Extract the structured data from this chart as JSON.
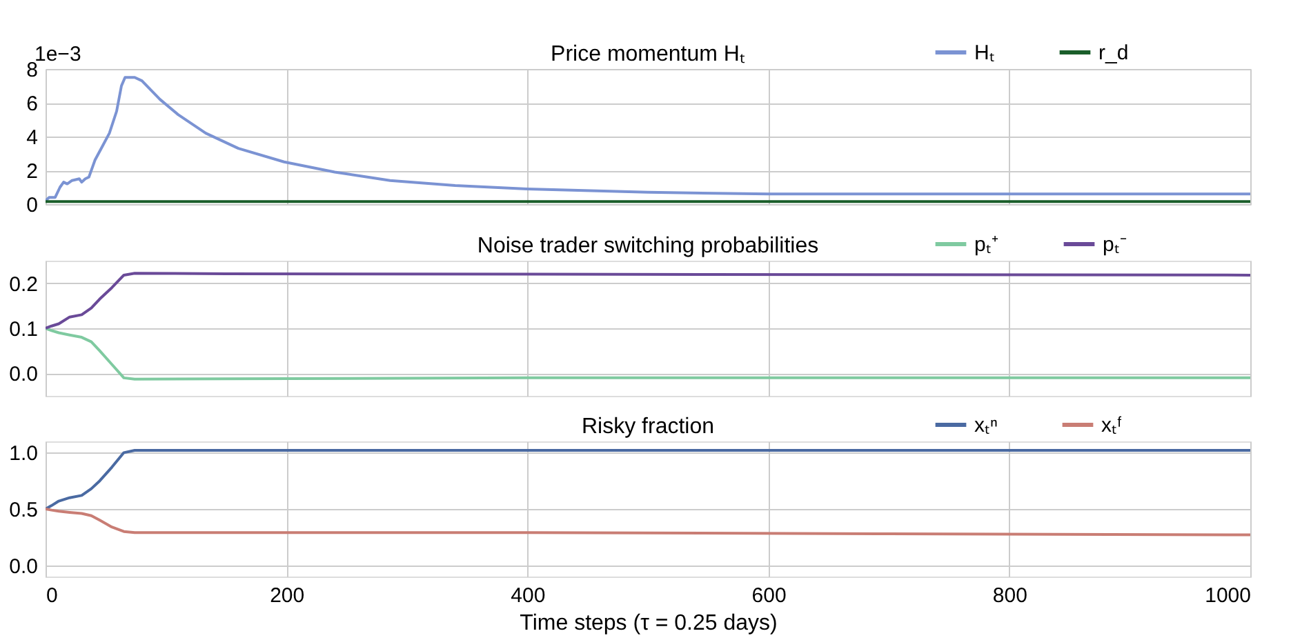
{
  "chart_data": [
    {
      "type": "line",
      "title": "Price momentum Hₜ",
      "legend": "top right",
      "grid": true,
      "tick_labels": "y",
      "xlim": [
        0,
        1000
      ],
      "xticks": [
        0,
        200,
        400,
        600,
        800,
        1000
      ],
      "ylim": [
        0,
        8
      ],
      "yticks": [
        0,
        2,
        4,
        6,
        8
      ],
      "annotations": [
        "1e−3"
      ],
      "series": [
        {
          "name": "Hₜ",
          "color": "#7b93d3",
          "x": [
            0,
            3,
            8,
            12,
            15,
            18,
            22,
            28,
            30,
            33,
            36,
            41,
            47,
            53,
            59,
            63,
            66,
            74,
            80,
            95,
            110,
            133,
            160,
            198,
            240,
            286,
            340,
            400,
            500,
            600,
            700,
            800,
            900,
            1000
          ],
          "values": [
            0.2,
            0.4,
            0.4,
            1.0,
            1.3,
            1.2,
            1.4,
            1.5,
            1.3,
            1.5,
            1.6,
            2.6,
            3.4,
            4.2,
            5.5,
            7.0,
            7.5,
            7.5,
            7.3,
            6.2,
            5.3,
            4.2,
            3.3,
            2.5,
            1.9,
            1.4,
            1.1,
            0.9,
            0.7,
            0.6,
            0.6,
            0.6,
            0.6,
            0.6
          ]
        },
        {
          "name": "r_d",
          "color": "#1a5e2a",
          "x": [
            0,
            1000
          ],
          "values": [
            0.15,
            0.15
          ]
        }
      ]
    },
    {
      "type": "line",
      "title": "Noise trader switching probabilities",
      "legend": "top right",
      "grid": true,
      "tick_labels": "y",
      "xlim": [
        0,
        1000
      ],
      "xticks": [
        0,
        200,
        400,
        600,
        800,
        1000
      ],
      "ylim": [
        -0.05,
        0.25
      ],
      "yticks": [
        {
          "value": 0,
          "label": "0.0"
        },
        {
          "value": 0.1,
          "label": "0.1"
        },
        {
          "value": 0.2,
          "label": "0.2"
        }
      ],
      "series": [
        {
          "name": "pₜ⁺",
          "color": "#7fcaa0",
          "x": [
            0,
            5,
            11,
            20,
            30,
            38,
            45,
            55,
            65,
            74,
            150,
            400,
            700,
            1000
          ],
          "values": [
            0.1,
            0.095,
            0.09,
            0.085,
            0.08,
            0.07,
            0.05,
            0.02,
            -0.01,
            -0.013,
            -0.012,
            -0.01,
            -0.01,
            -0.01
          ]
        },
        {
          "name": "pₜ⁻",
          "color": "#6a4a98",
          "x": [
            0,
            5,
            11,
            20,
            30,
            38,
            45,
            55,
            65,
            74,
            150,
            400,
            700,
            1000
          ],
          "values": [
            0.1,
            0.105,
            0.11,
            0.125,
            0.13,
            0.145,
            0.165,
            0.19,
            0.218,
            0.222,
            0.221,
            0.22,
            0.219,
            0.218
          ]
        }
      ]
    },
    {
      "type": "line",
      "title": "Risky fraction",
      "xlabel": "Time steps (τ = 0.25 days)",
      "legend": "top right",
      "grid": true,
      "xlim": [
        0,
        1000
      ],
      "xticks": [
        0,
        200,
        400,
        600,
        800,
        1000
      ],
      "ylim": [
        -0.1,
        1.1
      ],
      "yticks": [
        {
          "value": 0,
          "label": "0.0"
        },
        {
          "value": 0.5,
          "label": "0.5"
        },
        {
          "value": 1,
          "label": "1.0"
        }
      ],
      "series": [
        {
          "name": "xₜⁿ",
          "color": "#4a6aa2",
          "x": [
            0,
            5,
            11,
            20,
            30,
            38,
            45,
            55,
            65,
            74,
            150,
            400,
            700,
            1000
          ],
          "values": [
            0.5,
            0.53,
            0.57,
            0.6,
            0.62,
            0.68,
            0.75,
            0.87,
            1.0,
            1.02,
            1.02,
            1.02,
            1.02,
            1.02
          ]
        },
        {
          "name": "xₜᶠ",
          "color": "#c97d74",
          "x": [
            0,
            5,
            11,
            20,
            30,
            38,
            45,
            55,
            65,
            74,
            150,
            400,
            700,
            1000
          ],
          "values": [
            0.5,
            0.49,
            0.48,
            0.47,
            0.46,
            0.44,
            0.4,
            0.34,
            0.3,
            0.29,
            0.29,
            0.29,
            0.28,
            0.27
          ]
        }
      ]
    }
  ]
}
